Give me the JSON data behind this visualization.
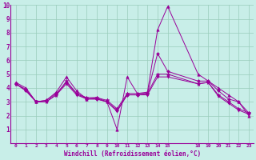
{
  "xlabel": "Windchill (Refroidissement éolien,°C)",
  "background_color": "#c8eee8",
  "grid_color": "#99ccbb",
  "line_color": "#990099",
  "xlim": [
    -0.5,
    23.5
  ],
  "ylim": [
    0,
    10
  ],
  "xticks": [
    0,
    1,
    2,
    3,
    4,
    5,
    6,
    7,
    8,
    9,
    10,
    11,
    12,
    13,
    14,
    15,
    18,
    19,
    20,
    21,
    22,
    23
  ],
  "yticks": [
    1,
    2,
    3,
    4,
    5,
    6,
    7,
    8,
    9,
    10
  ],
  "lines": [
    {
      "x": [
        0,
        1,
        2,
        3,
        4,
        5,
        6,
        7,
        8,
        9,
        10,
        11,
        12,
        13,
        14,
        15,
        18,
        19,
        20,
        21,
        22,
        23
      ],
      "y": [
        4.4,
        4.0,
        3.0,
        3.1,
        3.7,
        4.8,
        3.8,
        3.2,
        3.3,
        3.0,
        1.0,
        4.8,
        3.6,
        3.7,
        8.2,
        9.9,
        5.0,
        4.5,
        4.0,
        3.5,
        3.0,
        2.0
      ],
      "marker": "^",
      "markersize": 2.5
    },
    {
      "x": [
        0,
        1,
        2,
        3,
        4,
        5,
        6,
        7,
        8,
        9,
        10,
        11,
        12,
        13,
        14,
        15,
        18,
        19,
        20,
        21,
        22,
        23
      ],
      "y": [
        4.3,
        3.9,
        3.0,
        3.0,
        3.5,
        4.5,
        3.6,
        3.3,
        3.3,
        3.1,
        2.5,
        3.6,
        3.6,
        3.6,
        5.0,
        5.0,
        4.3,
        4.4,
        3.5,
        3.0,
        2.5,
        2.2
      ],
      "marker": "*",
      "markersize": 3.5
    },
    {
      "x": [
        0,
        1,
        2,
        3,
        4,
        5,
        6,
        7,
        8,
        9,
        10,
        11,
        12,
        13,
        14,
        15,
        18,
        19,
        20,
        21,
        22,
        23
      ],
      "y": [
        4.3,
        3.8,
        3.0,
        3.1,
        3.6,
        4.4,
        3.6,
        3.2,
        3.2,
        3.0,
        2.4,
        3.5,
        3.5,
        3.6,
        6.5,
        5.2,
        4.5,
        4.5,
        3.8,
        3.2,
        3.0,
        2.2
      ],
      "marker": "D",
      "markersize": 2.0
    },
    {
      "x": [
        0,
        1,
        2,
        3,
        4,
        5,
        6,
        7,
        8,
        9,
        10,
        11,
        12,
        13,
        14,
        15,
        18,
        19,
        20,
        21,
        22,
        23
      ],
      "y": [
        4.3,
        3.8,
        3.0,
        3.0,
        3.5,
        4.3,
        3.5,
        3.2,
        3.2,
        3.0,
        2.3,
        3.5,
        3.5,
        3.5,
        4.8,
        4.8,
        4.3,
        4.4,
        3.4,
        2.9,
        2.4,
        2.1
      ],
      "marker": "v",
      "markersize": 2.5
    }
  ]
}
